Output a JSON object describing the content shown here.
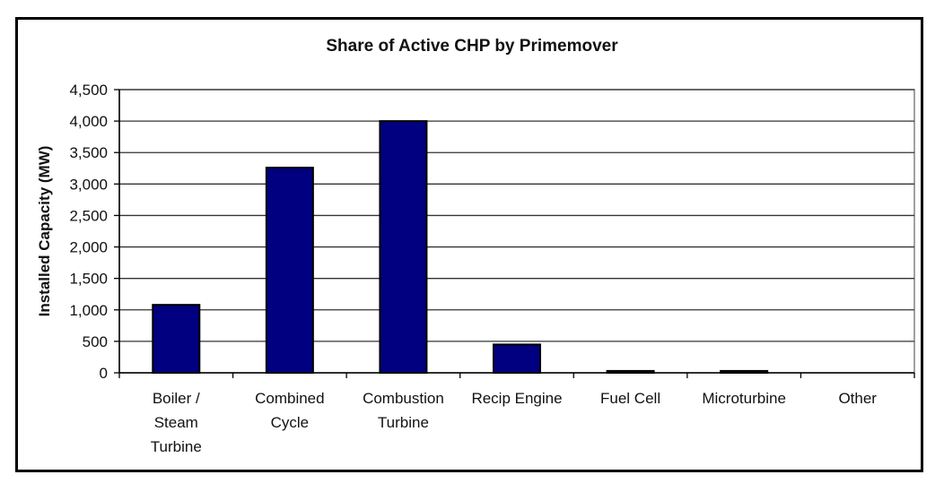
{
  "chart_data": {
    "type": "bar",
    "title": "Share of Active CHP by Primemover",
    "xlabel": "",
    "ylabel": "Installed Capacity (MW)",
    "ylim": [
      0,
      4500
    ],
    "yticks": [
      0,
      500,
      1000,
      1500,
      2000,
      2500,
      3000,
      3500,
      4000,
      4500
    ],
    "ytick_labels": [
      "0",
      "500",
      "1,000",
      "1,500",
      "2,000",
      "2,500",
      "3,000",
      "3,500",
      "4,000",
      "4,500"
    ],
    "grid": true,
    "legend": "none",
    "bar_color": "#000080",
    "categories": [
      [
        "Boiler /",
        "Steam",
        "Turbine"
      ],
      [
        "Combined",
        "Cycle"
      ],
      [
        "Combustion",
        "Turbine"
      ],
      [
        "Recip Engine"
      ],
      [
        "Fuel Cell"
      ],
      [
        "Microturbine"
      ],
      [
        "Other"
      ]
    ],
    "values": [
      1080,
      3260,
      4000,
      450,
      30,
      30,
      0
    ]
  }
}
